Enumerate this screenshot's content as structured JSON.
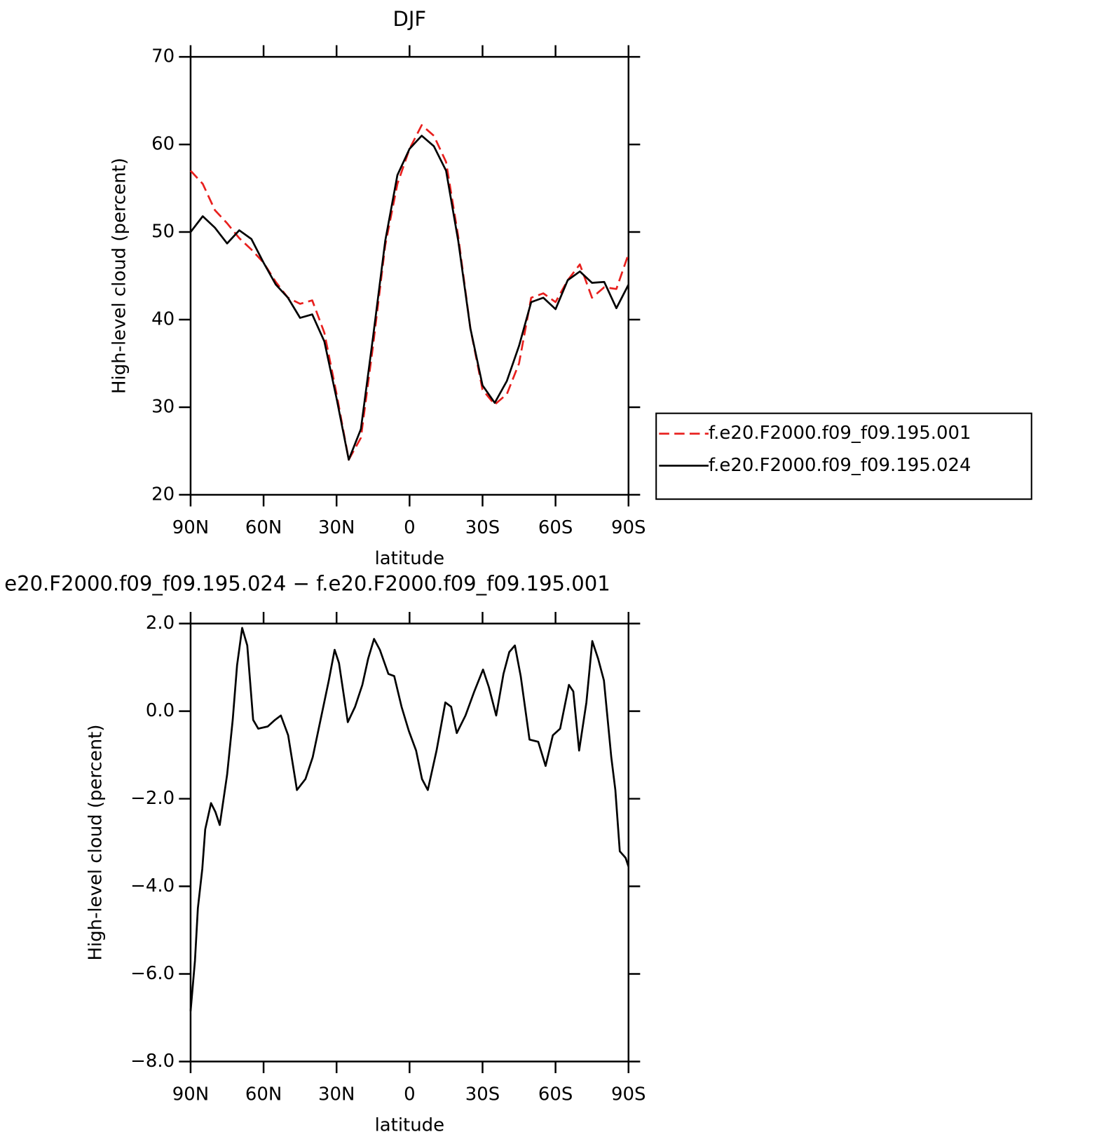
{
  "chart_data": [
    {
      "type": "line",
      "title": "DJF",
      "x_label": "latitude",
      "y_label": "High-level cloud (percent)",
      "x": [
        90,
        85,
        80,
        75,
        70,
        65,
        60,
        55,
        50,
        45,
        40,
        35,
        30,
        25,
        20,
        15,
        10,
        5,
        0,
        -5,
        -10,
        -15,
        -20,
        -25,
        -30,
        -35,
        -40,
        -45,
        -50,
        -55,
        -60,
        -65,
        -70,
        -75,
        -80,
        -85,
        -90
      ],
      "series": [
        {
          "name": "f.e20.F2000.f09_f09.195.001",
          "color": "#e8201e",
          "linestyle": "dashed",
          "values": [
            57,
            55.5,
            52.5,
            51,
            49.3,
            48,
            46.5,
            44.3,
            42.5,
            41.8,
            42.2,
            38.5,
            31.5,
            24,
            26.5,
            37,
            48.5,
            55.5,
            59.5,
            62.2,
            61,
            58,
            49.5,
            39,
            32,
            30.3,
            31.5,
            35,
            42.5,
            43,
            42,
            44.5,
            46.3,
            42.5,
            43.7,
            43.5,
            47.5
          ]
        },
        {
          "name": "f.e20.F2000.f09_f09.195.024",
          "color": "#000000",
          "linestyle": "solid",
          "values": [
            50,
            51.8,
            50.5,
            48.7,
            50.2,
            49.2,
            46.5,
            44,
            42.5,
            40.2,
            40.6,
            37.5,
            31,
            24,
            27.5,
            38,
            49,
            56.5,
            59.5,
            61,
            59.8,
            57,
            49,
            39,
            32.5,
            30.5,
            33,
            37,
            42,
            42.5,
            41.2,
            44.5,
            45.5,
            44.2,
            44.3,
            41.3,
            44
          ]
        }
      ],
      "xlim": [
        90,
        -90
      ],
      "xticks": [
        {
          "value": 90,
          "label": "90N"
        },
        {
          "value": 60,
          "label": "60N"
        },
        {
          "value": 30,
          "label": "30N"
        },
        0,
        {
          "value": -30,
          "label": "30S"
        },
        {
          "value": -60,
          "label": "60S"
        },
        {
          "value": -90,
          "label": "90S"
        }
      ],
      "ylim": [
        20,
        70
      ],
      "yticks": [
        20,
        30,
        40,
        50,
        60,
        70
      ],
      "legend": "right"
    },
    {
      "type": "line",
      "title": "e20.F2000.f09_f09.195.024 − f.e20.F2000.f09_f09.195.001",
      "x_label": "latitude",
      "y_label": "High-level cloud (percent)",
      "x": [
        90,
        88.2,
        87,
        85.2,
        84,
        81.6,
        79.8,
        78,
        75,
        72.7,
        70.9,
        68.8,
        66.7,
        64.3,
        62.2,
        58.3,
        55.3,
        52.9,
        49.9,
        46.3,
        42.8,
        39.8,
        36.2,
        33.2,
        30.8,
        29,
        25.4,
        22.4,
        19.4,
        17,
        14.6,
        12.2,
        8.7,
        6.3,
        3.3,
        0.3,
        -2.7,
        -5.1,
        -7.5,
        -11.1,
        -14.7,
        -17.1,
        -19.4,
        -23,
        -26.6,
        -30.2,
        -32.6,
        -35.6,
        -38.6,
        -41,
        -43.3,
        -45.7,
        -49.3,
        -52.9,
        -55.9,
        -58.9,
        -61.9,
        -65.5,
        -67.3,
        -69.7,
        -72.7,
        -75.1,
        -77.5,
        -79.9,
        -82.9,
        -84.6,
        -86.4,
        -88.8,
        -90
      ],
      "values": [
        -6.85,
        -5.7,
        -4.5,
        -3.6,
        -2.7,
        -2.1,
        -2.3,
        -2.6,
        -1.45,
        -0.2,
        1.05,
        1.9,
        1.5,
        -0.2,
        -0.4,
        -0.35,
        -0.2,
        -0.1,
        -0.55,
        -1.8,
        -1.55,
        -1.05,
        -0.1,
        0.7,
        1.4,
        1.1,
        -0.25,
        0.1,
        0.6,
        1.2,
        1.65,
        1.4,
        0.85,
        0.8,
        0.1,
        -0.45,
        -0.9,
        -1.55,
        -1.8,
        -0.9,
        0.2,
        0.1,
        -0.5,
        -0.1,
        0.45,
        0.95,
        0.55,
        -0.1,
        0.85,
        1.35,
        1.5,
        0.8,
        -0.65,
        -0.7,
        -1.25,
        -0.55,
        -0.4,
        0.6,
        0.45,
        -0.9,
        0.2,
        1.6,
        1.2,
        0.7,
        -1.05,
        -1.8,
        -3.2,
        -3.35,
        -3.55
      ],
      "color": "#000000",
      "xlim": [
        90,
        -90
      ],
      "xticks": [
        {
          "value": 90,
          "label": "90N"
        },
        {
          "value": 60,
          "label": "60N"
        },
        {
          "value": 30,
          "label": "30N"
        },
        0,
        {
          "value": -30,
          "label": "30S"
        },
        {
          "value": -60,
          "label": "60S"
        },
        {
          "value": -90,
          "label": "90S"
        }
      ],
      "ylim": [
        -8,
        2
      ],
      "yticks": [
        {
          "value": -8,
          "label": "−8.0"
        },
        {
          "value": -6,
          "label": "−6.0"
        },
        {
          "value": -4,
          "label": "−4.0"
        },
        {
          "value": -2,
          "label": "−2.0"
        },
        {
          "value": 0,
          "label": "0.0"
        },
        {
          "value": 2,
          "label": "2.0"
        }
      ]
    }
  ]
}
